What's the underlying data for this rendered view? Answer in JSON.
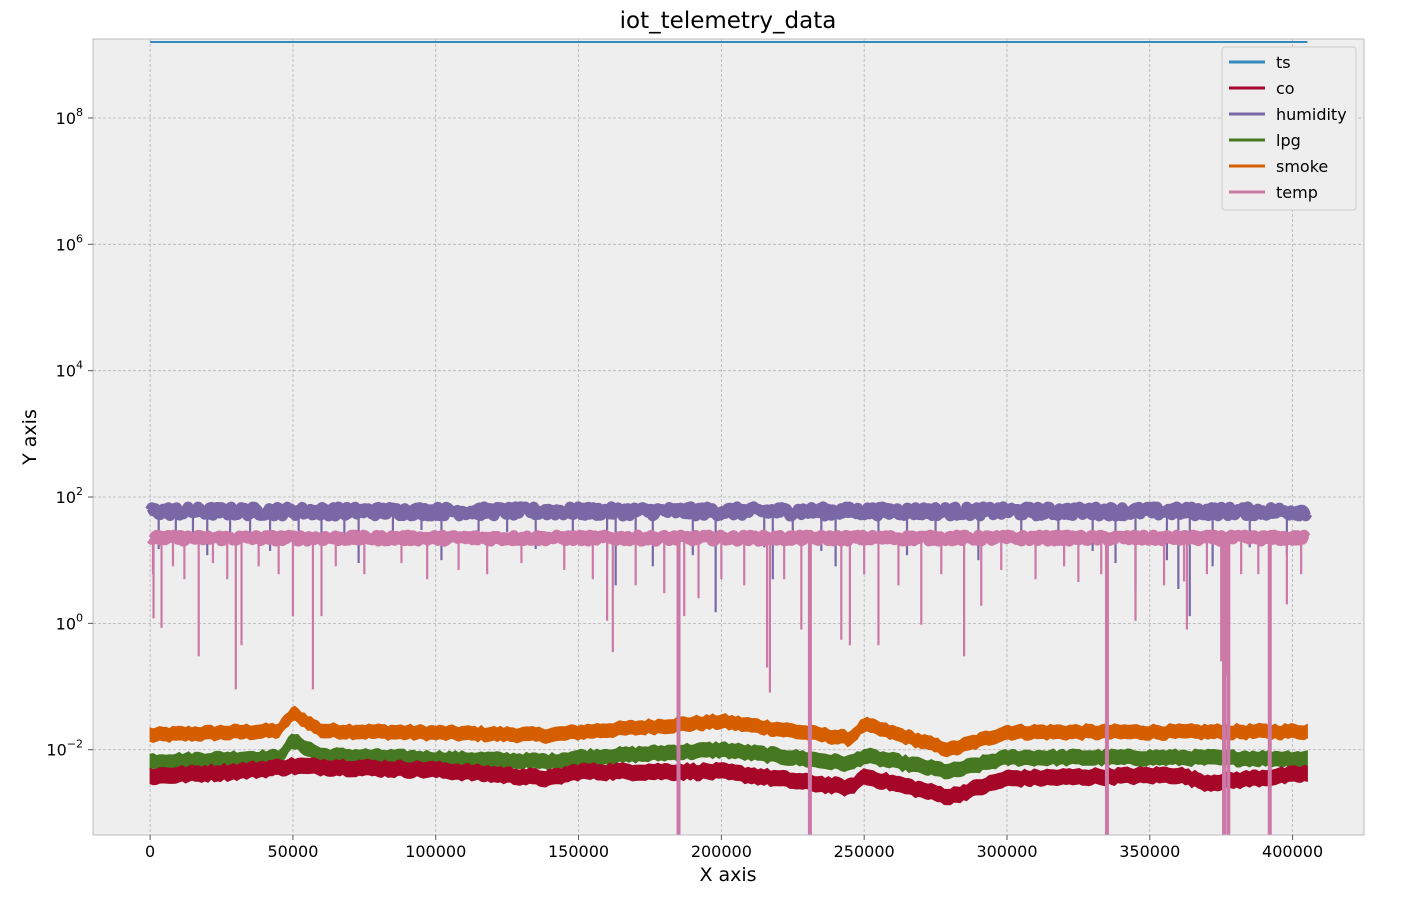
{
  "chart_data": {
    "type": "line",
    "title": "iot_telemetry_data",
    "xlabel": "X axis",
    "ylabel": "Y axis",
    "xscale": "linear",
    "yscale": "log",
    "xlim": [
      -20000,
      425000
    ],
    "ylim_log10": [
      -3.35,
      9.25
    ],
    "xticks": [
      0,
      50000,
      100000,
      150000,
      200000,
      250000,
      300000,
      350000,
      400000
    ],
    "xtick_labels": [
      "0",
      "50000",
      "100000",
      "150000",
      "200000",
      "250000",
      "300000",
      "350000",
      "400000"
    ],
    "yticks_log10": [
      -2,
      0,
      2,
      4,
      6,
      8
    ],
    "ytick_labels": [
      "10",
      "10",
      "10",
      "10",
      "10",
      "10"
    ],
    "ytick_exponents": [
      "−2",
      "0",
      "2",
      "4",
      "6",
      "8"
    ],
    "grid": true,
    "legend_position": "top-right",
    "colors": {
      "background": "#eeeeee",
      "grid": "#b2b2b2",
      "frame": "#bcbcbc"
    },
    "x_extent": [
      0,
      405184
    ],
    "series": [
      {
        "name": "ts",
        "color": "#348abd",
        "typical": 1594950000,
        "low": 1594500000,
        "high": 1595200000
      },
      {
        "name": "co",
        "color": "#a60628",
        "keypoints": [
          [
            0,
            0.0038
          ],
          [
            30000,
            0.0045
          ],
          [
            50000,
            0.0055
          ],
          [
            100000,
            0.0048
          ],
          [
            140000,
            0.0035
          ],
          [
            150000,
            0.0045
          ],
          [
            200000,
            0.0045
          ],
          [
            245000,
            0.0025
          ],
          [
            250000,
            0.0038
          ],
          [
            280000,
            0.0018
          ],
          [
            300000,
            0.0035
          ],
          [
            360000,
            0.004
          ],
          [
            370000,
            0.003
          ],
          [
            405184,
            0.0042
          ]
        ]
      },
      {
        "name": "humidity",
        "color": "#7a68a6",
        "typical": 60,
        "low": 50,
        "high": 70
      },
      {
        "name": "lpg",
        "color": "#467821",
        "keypoints": [
          [
            0,
            0.0065
          ],
          [
            45000,
            0.0075
          ],
          [
            50000,
            0.014
          ],
          [
            60000,
            0.008
          ],
          [
            140000,
            0.0065
          ],
          [
            150000,
            0.0075
          ],
          [
            200000,
            0.01
          ],
          [
            245000,
            0.006
          ],
          [
            250000,
            0.008
          ],
          [
            280000,
            0.0045
          ],
          [
            300000,
            0.0075
          ],
          [
            360000,
            0.0075
          ],
          [
            405184,
            0.0072
          ]
        ]
      },
      {
        "name": "smoke",
        "color": "#d55e00",
        "keypoints": [
          [
            0,
            0.017
          ],
          [
            45000,
            0.02
          ],
          [
            50000,
            0.038
          ],
          [
            60000,
            0.02
          ],
          [
            140000,
            0.017
          ],
          [
            150000,
            0.019
          ],
          [
            200000,
            0.028
          ],
          [
            245000,
            0.015
          ],
          [
            250000,
            0.025
          ],
          [
            280000,
            0.01
          ],
          [
            300000,
            0.019
          ],
          [
            360000,
            0.019
          ],
          [
            405184,
            0.0195
          ]
        ]
      },
      {
        "name": "temp",
        "color": "#cc79a7",
        "typical": 22,
        "low": 20,
        "high": 25
      }
    ]
  }
}
